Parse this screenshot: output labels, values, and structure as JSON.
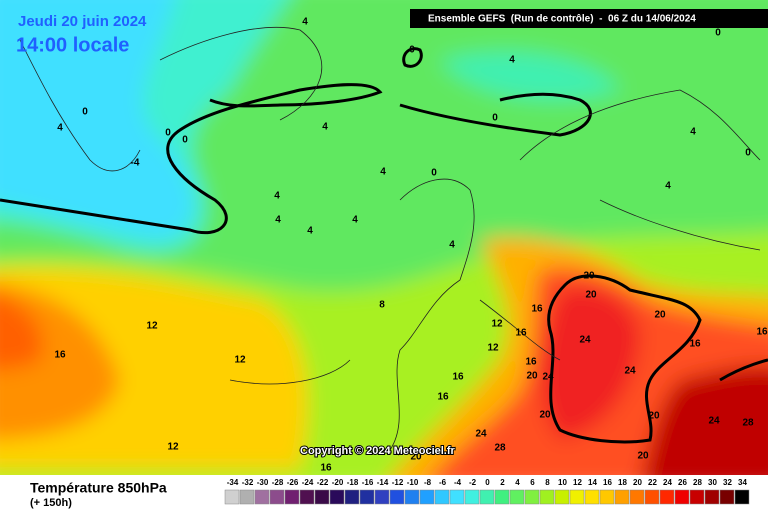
{
  "header": {
    "date": "Jeudi 20 juin 2024",
    "time": "14:00 locale",
    "run": "Ensemble GEFS  (Run de contrôle)  -  06 Z du 14/06/2024",
    "copyright": "Copyright © 2024 Meteociel.fr"
  },
  "footer": {
    "title": "Température 850hPa",
    "lead": "(+ 150h)"
  },
  "colorbar": {
    "ticks": [
      -34,
      -32,
      -30,
      -28,
      -26,
      -24,
      -22,
      -20,
      -18,
      -16,
      -14,
      -12,
      -10,
      -8,
      -6,
      -4,
      -2,
      0,
      2,
      4,
      6,
      8,
      10,
      12,
      14,
      16,
      18,
      20,
      22,
      24,
      26,
      28,
      30,
      32,
      34
    ],
    "colors": [
      "#d0d0d0",
      "#b0b0b0",
      "#a070a0",
      "#8c4c8c",
      "#702070",
      "#501050",
      "#3a0a48",
      "#2a0a5a",
      "#202080",
      "#2030a0",
      "#3040c0",
      "#2050e0",
      "#2080f0",
      "#20a0ff",
      "#30c8ff",
      "#40e0ff",
      "#40f0e0",
      "#40f0b0",
      "#40f080",
      "#60f060",
      "#80f040",
      "#a0f020",
      "#c8f000",
      "#f0f000",
      "#ffe000",
      "#ffc800",
      "#ffa000",
      "#ff7800",
      "#ff5000",
      "#ff2800",
      "#f00000",
      "#c80000",
      "#a00000",
      "#780000",
      "#000000"
    ]
  },
  "contour_labels": [
    4,
    0,
    4,
    0,
    0,
    4,
    0,
    0,
    4,
    0,
    4,
    0,
    -4,
    4,
    0,
    4,
    4,
    4,
    4,
    4,
    4,
    20,
    20,
    16,
    20,
    8,
    12,
    12,
    16,
    12,
    24,
    16,
    16,
    12,
    16,
    16,
    16,
    20,
    24,
    24,
    16,
    20,
    20,
    24,
    28,
    24,
    12,
    28,
    20,
    20,
    16
  ]
}
